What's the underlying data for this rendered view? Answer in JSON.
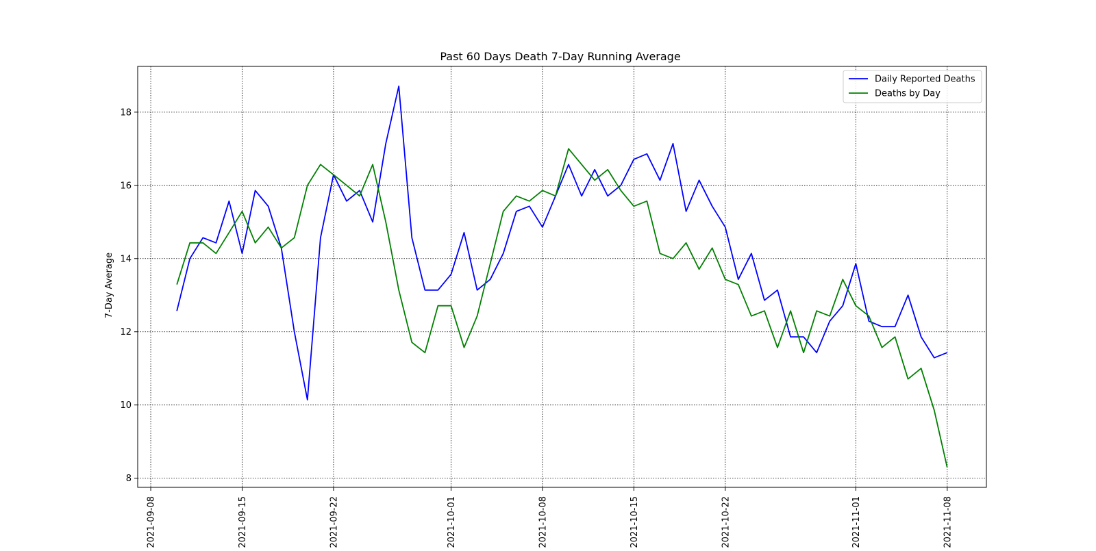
{
  "chart_data": {
    "type": "line",
    "title": "Past 60 Days Death 7-Day Running Average",
    "xlabel": "",
    "ylabel": "7-Day Average",
    "xlim": [
      "2021-09-07",
      "2021-11-11"
    ],
    "ylim": [
      7.75,
      19.25
    ],
    "xticks": [
      "2021-09-08",
      "2021-09-15",
      "2021-09-22",
      "2021-10-01",
      "2021-10-08",
      "2021-10-15",
      "2021-10-22",
      "2021-11-01",
      "2021-11-08"
    ],
    "yticks": [
      8,
      10,
      12,
      14,
      16,
      18
    ],
    "grid": true,
    "legend_position": "top-right",
    "x": [
      "2021-09-10",
      "2021-09-11",
      "2021-09-12",
      "2021-09-13",
      "2021-09-14",
      "2021-09-15",
      "2021-09-16",
      "2021-09-17",
      "2021-09-18",
      "2021-09-19",
      "2021-09-20",
      "2021-09-21",
      "2021-09-22",
      "2021-09-23",
      "2021-09-24",
      "2021-09-25",
      "2021-09-26",
      "2021-09-27",
      "2021-09-28",
      "2021-09-29",
      "2021-09-30",
      "2021-10-01",
      "2021-10-02",
      "2021-10-03",
      "2021-10-04",
      "2021-10-05",
      "2021-10-06",
      "2021-10-07",
      "2021-10-08",
      "2021-10-09",
      "2021-10-10",
      "2021-10-11",
      "2021-10-12",
      "2021-10-13",
      "2021-10-14",
      "2021-10-15",
      "2021-10-16",
      "2021-10-17",
      "2021-10-18",
      "2021-10-19",
      "2021-10-20",
      "2021-10-21",
      "2021-10-22",
      "2021-10-23",
      "2021-10-24",
      "2021-10-25",
      "2021-10-26",
      "2021-10-27",
      "2021-10-28",
      "2021-10-29",
      "2021-10-30",
      "2021-10-31",
      "2021-11-01",
      "2021-11-02",
      "2021-11-03",
      "2021-11-04",
      "2021-11-05",
      "2021-11-06",
      "2021-11-07",
      "2021-11-08"
    ],
    "series": [
      {
        "name": "Daily Reported Deaths",
        "color": "#0000ff",
        "values": [
          12.57,
          14.0,
          14.57,
          14.43,
          15.57,
          14.14,
          15.86,
          15.43,
          14.29,
          12.0,
          10.14,
          14.57,
          16.29,
          15.57,
          15.86,
          15.0,
          17.14,
          18.71,
          14.57,
          13.14,
          13.14,
          13.57,
          14.71,
          13.14,
          13.43,
          14.14,
          15.29,
          15.43,
          14.86,
          15.71,
          16.57,
          15.71,
          16.43,
          15.71,
          16.0,
          16.71,
          16.86,
          16.14,
          17.14,
          15.29,
          16.14,
          15.43,
          14.86,
          13.43,
          14.14,
          12.86,
          13.14,
          11.86,
          11.86,
          11.43,
          12.29,
          12.71,
          13.86,
          12.29,
          12.14,
          12.14,
          13.0,
          11.86,
          11.29,
          11.43
        ]
      },
      {
        "name": "Deaths by Day",
        "color": "#008000",
        "values": [
          13.29,
          14.43,
          14.43,
          14.14,
          14.71,
          15.29,
          14.43,
          14.86,
          14.29,
          14.57,
          16.0,
          16.57,
          16.29,
          16.0,
          15.71,
          16.57,
          15.0,
          13.14,
          11.71,
          11.43,
          12.71,
          12.71,
          11.57,
          12.43,
          13.86,
          15.29,
          15.71,
          15.57,
          15.86,
          15.71,
          17.0,
          16.57,
          16.14,
          16.43,
          15.86,
          15.43,
          15.57,
          14.14,
          14.0,
          14.43,
          13.71,
          14.29,
          13.43,
          13.29,
          12.43,
          12.57,
          11.57,
          12.57,
          11.43,
          12.57,
          12.43,
          13.43,
          12.71,
          12.43,
          11.57,
          11.86,
          10.71,
          11.0,
          9.86,
          8.29
        ]
      }
    ]
  }
}
